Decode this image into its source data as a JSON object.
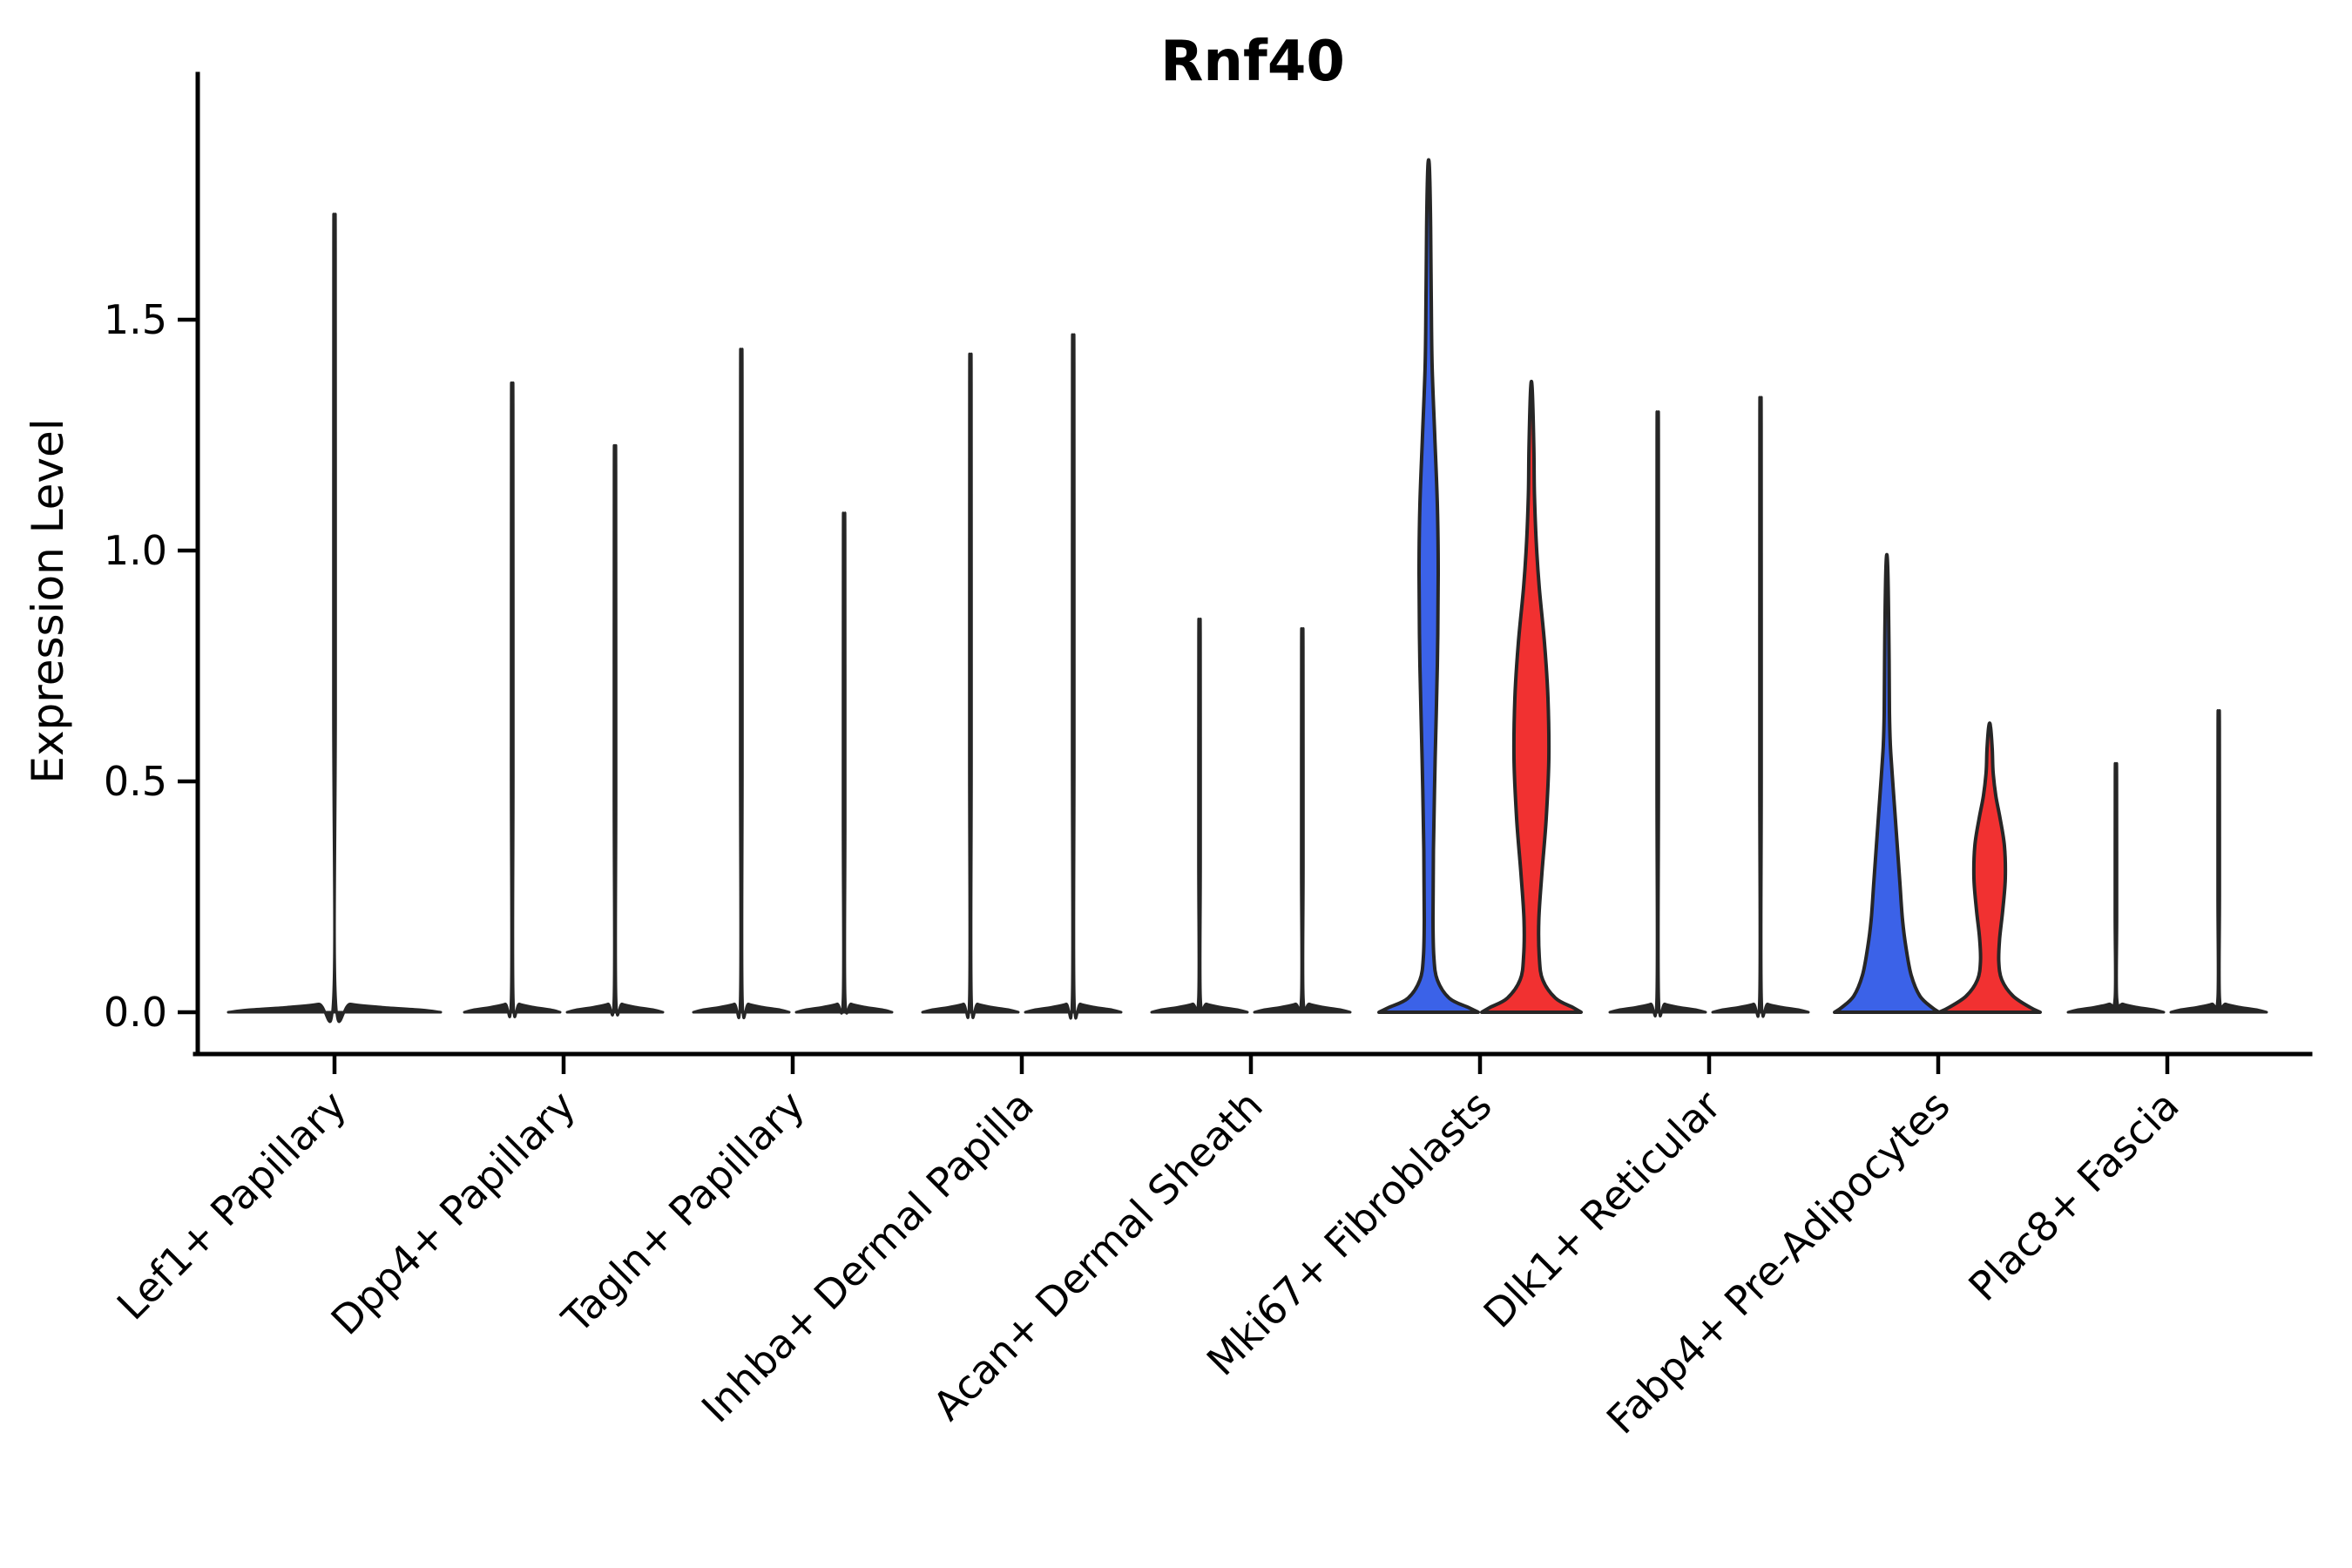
{
  "figure": {
    "title": "Rnf40",
    "ylabel": "Expression Level"
  },
  "chart_data": {
    "type": "violin",
    "title": "Rnf40",
    "xlabel": "",
    "ylabel": "Expression Level",
    "ylim": [
      0,
      2.03
    ],
    "grid": false,
    "legend": "none",
    "split_violin": true,
    "ytick_labels": [
      "0.0",
      "0.5",
      "1.0",
      "1.5"
    ],
    "ytick_values": [
      0.0,
      0.5,
      1.0,
      1.5
    ],
    "categories": [
      "Lef1+ Papillary",
      "Dpp4+ Papillary",
      "Tagln+ Papillary",
      "Inhba+ Dermal Papilla",
      "Acan+ Dermal Sheath",
      "Mki67+ Fibroblasts",
      "Dlk1+ Reticular",
      "Fabp4+ Pre-Adipocytes",
      "Plac8+ Fascia"
    ],
    "colors": {
      "group1_fill": "#3B62E8",
      "group2_fill": "#F13131",
      "outline": "#262626"
    },
    "violins": [
      {
        "category_index": 0,
        "position": "center",
        "style": "thin",
        "max": 1.67,
        "base_halfwidth": 122,
        "fill": "outline"
      },
      {
        "category_index": 1,
        "position": "left",
        "style": "thin",
        "max": 1.32,
        "base_halfwidth": 55,
        "fill": "outline"
      },
      {
        "category_index": 1,
        "position": "right",
        "style": "thin",
        "max": 1.19,
        "base_halfwidth": 55,
        "fill": "outline"
      },
      {
        "category_index": 2,
        "position": "left",
        "style": "thin",
        "max": 1.39,
        "base_halfwidth": 55,
        "fill": "outline"
      },
      {
        "category_index": 2,
        "position": "right",
        "style": "thin",
        "max": 1.05,
        "base_halfwidth": 55,
        "fill": "outline"
      },
      {
        "category_index": 3,
        "position": "left",
        "style": "thin",
        "max": 1.38,
        "base_halfwidth": 55,
        "fill": "outline"
      },
      {
        "category_index": 3,
        "position": "right",
        "style": "thin",
        "max": 1.42,
        "base_halfwidth": 55,
        "fill": "outline"
      },
      {
        "category_index": 4,
        "position": "left",
        "style": "thin",
        "max": 0.83,
        "base_halfwidth": 55,
        "fill": "outline"
      },
      {
        "category_index": 4,
        "position": "right",
        "style": "thin",
        "max": 0.81,
        "base_halfwidth": 55,
        "fill": "outline"
      },
      {
        "category_index": 5,
        "position": "left",
        "style": "body",
        "max": 1.83,
        "fill": "group1_fill",
        "profile": [
          [
            0,
            57
          ],
          [
            0.01,
            46
          ],
          [
            0.03,
            24
          ],
          [
            0.07,
            10
          ],
          [
            0.12,
            6
          ],
          [
            0.2,
            5
          ],
          [
            0.35,
            5.5
          ],
          [
            0.55,
            7.5
          ],
          [
            0.75,
            10
          ],
          [
            0.95,
            11
          ],
          [
            1.1,
            10
          ],
          [
            1.25,
            7
          ],
          [
            1.4,
            4
          ],
          [
            1.55,
            3
          ],
          [
            1.7,
            2.3
          ],
          [
            1.83,
            0.9
          ]
        ]
      },
      {
        "category_index": 5,
        "position": "right",
        "style": "body",
        "max": 1.35,
        "fill": "group2_fill",
        "profile": [
          [
            0,
            57
          ],
          [
            0.01,
            48
          ],
          [
            0.03,
            28
          ],
          [
            0.07,
            13
          ],
          [
            0.12,
            9
          ],
          [
            0.2,
            8.5
          ],
          [
            0.3,
            12
          ],
          [
            0.42,
            17
          ],
          [
            0.55,
            20
          ],
          [
            0.68,
            19
          ],
          [
            0.8,
            15
          ],
          [
            0.92,
            9
          ],
          [
            1.02,
            5.5
          ],
          [
            1.12,
            3.5
          ],
          [
            1.22,
            2.8
          ],
          [
            1.35,
            0.9
          ]
        ]
      },
      {
        "category_index": 6,
        "position": "left",
        "style": "thin",
        "max": 1.26,
        "base_halfwidth": 55,
        "fill": "outline"
      },
      {
        "category_index": 6,
        "position": "right",
        "style": "thin",
        "max": 1.29,
        "base_halfwidth": 55,
        "fill": "outline"
      },
      {
        "category_index": 7,
        "position": "left",
        "style": "body",
        "max": 0.97,
        "fill": "group1_fill",
        "profile": [
          [
            0,
            60
          ],
          [
            0.01,
            52
          ],
          [
            0.035,
            38
          ],
          [
            0.08,
            28
          ],
          [
            0.14,
            22
          ],
          [
            0.2,
            18
          ],
          [
            0.28,
            15
          ],
          [
            0.36,
            12
          ],
          [
            0.44,
            9
          ],
          [
            0.52,
            6
          ],
          [
            0.58,
            4
          ],
          [
            0.65,
            3
          ],
          [
            0.8,
            2.4
          ],
          [
            0.97,
            0.9
          ]
        ]
      },
      {
        "category_index": 7,
        "position": "right",
        "style": "body",
        "max": 0.62,
        "fill": "group2_fill",
        "profile": [
          [
            0,
            58
          ],
          [
            0.01,
            47
          ],
          [
            0.035,
            27
          ],
          [
            0.07,
            14
          ],
          [
            0.11,
            10.5
          ],
          [
            0.16,
            11.5
          ],
          [
            0.22,
            15
          ],
          [
            0.29,
            18
          ],
          [
            0.36,
            17
          ],
          [
            0.42,
            12
          ],
          [
            0.47,
            7
          ],
          [
            0.52,
            4
          ],
          [
            0.57,
            3
          ],
          [
            0.62,
            0.9
          ]
        ]
      },
      {
        "category_index": 8,
        "position": "left",
        "style": "thin",
        "max": 0.53,
        "base_halfwidth": 55,
        "fill": "outline"
      },
      {
        "category_index": 8,
        "position": "right",
        "style": "thin",
        "max": 0.64,
        "base_halfwidth": 55,
        "fill": "outline"
      }
    ]
  }
}
